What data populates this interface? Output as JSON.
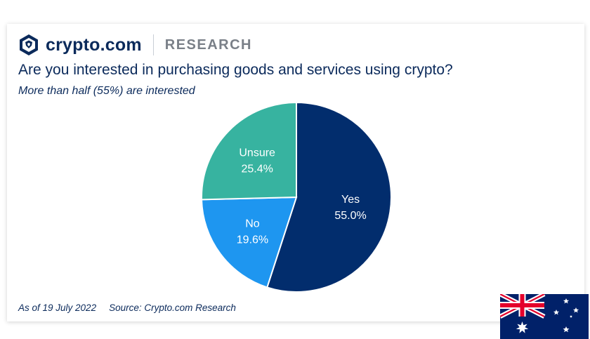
{
  "brand": {
    "name": "crypto.com",
    "section": "RESEARCH",
    "logo_icon": "crypto-com-lion-shield-icon"
  },
  "title": "Are you interested in purchasing goods and services using crypto?",
  "subtitle": "More than half (55%) are interested",
  "footer": {
    "date": "As of 19 July 2022",
    "source": "Source: Crypto.com Research"
  },
  "flag_icon": "australia-flag-icon",
  "colors": {
    "navy": "#0b2a5b",
    "yes": "#022d6d",
    "no": "#1e96f0",
    "unsure": "#37b3a0"
  },
  "chart_data": {
    "type": "pie",
    "start": "12 o'clock",
    "direction": "clockwise",
    "slices": [
      {
        "name": "Yes",
        "value": 55.0,
        "display": "55.0%",
        "color": "#022d6d"
      },
      {
        "name": "No",
        "value": 19.6,
        "display": "19.6%",
        "color": "#1e96f0"
      },
      {
        "name": "Unsure",
        "value": 25.4,
        "display": "25.4%",
        "color": "#37b3a0"
      }
    ],
    "title": "Are you interested in purchasing goods and services using crypto?",
    "legend": "none"
  }
}
